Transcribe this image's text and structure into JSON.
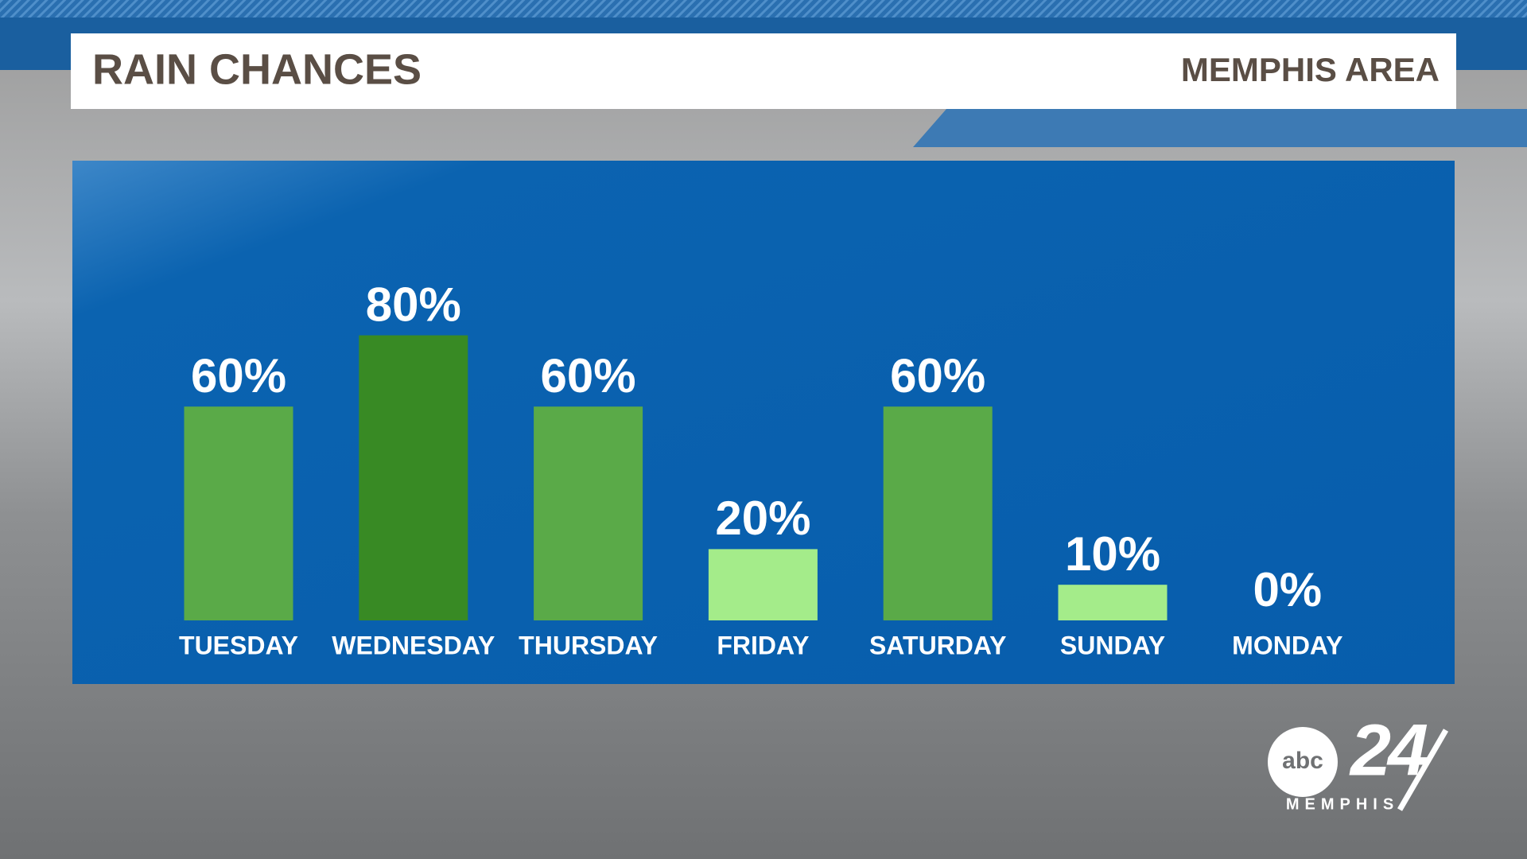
{
  "chart_data": {
    "type": "bar",
    "title": "RAIN CHANCES",
    "subtitle": "MEMPHIS AREA",
    "categories": [
      "TUESDAY",
      "WEDNESDAY",
      "THURSDAY",
      "FRIDAY",
      "SATURDAY",
      "SUNDAY",
      "MONDAY"
    ],
    "values": [
      60,
      80,
      60,
      20,
      60,
      10,
      0
    ],
    "value_labels": [
      "60%",
      "80%",
      "60%",
      "20%",
      "60%",
      "10%",
      "0%"
    ],
    "colors": [
      "#5aaa48",
      "#388a24",
      "#5aaa48",
      "#a4ec8a",
      "#5aaa48",
      "#a4ec8a",
      "#a4ec8a"
    ]
  },
  "logo": {
    "network": "abc",
    "number": "24",
    "city": "MEMPHIS"
  }
}
